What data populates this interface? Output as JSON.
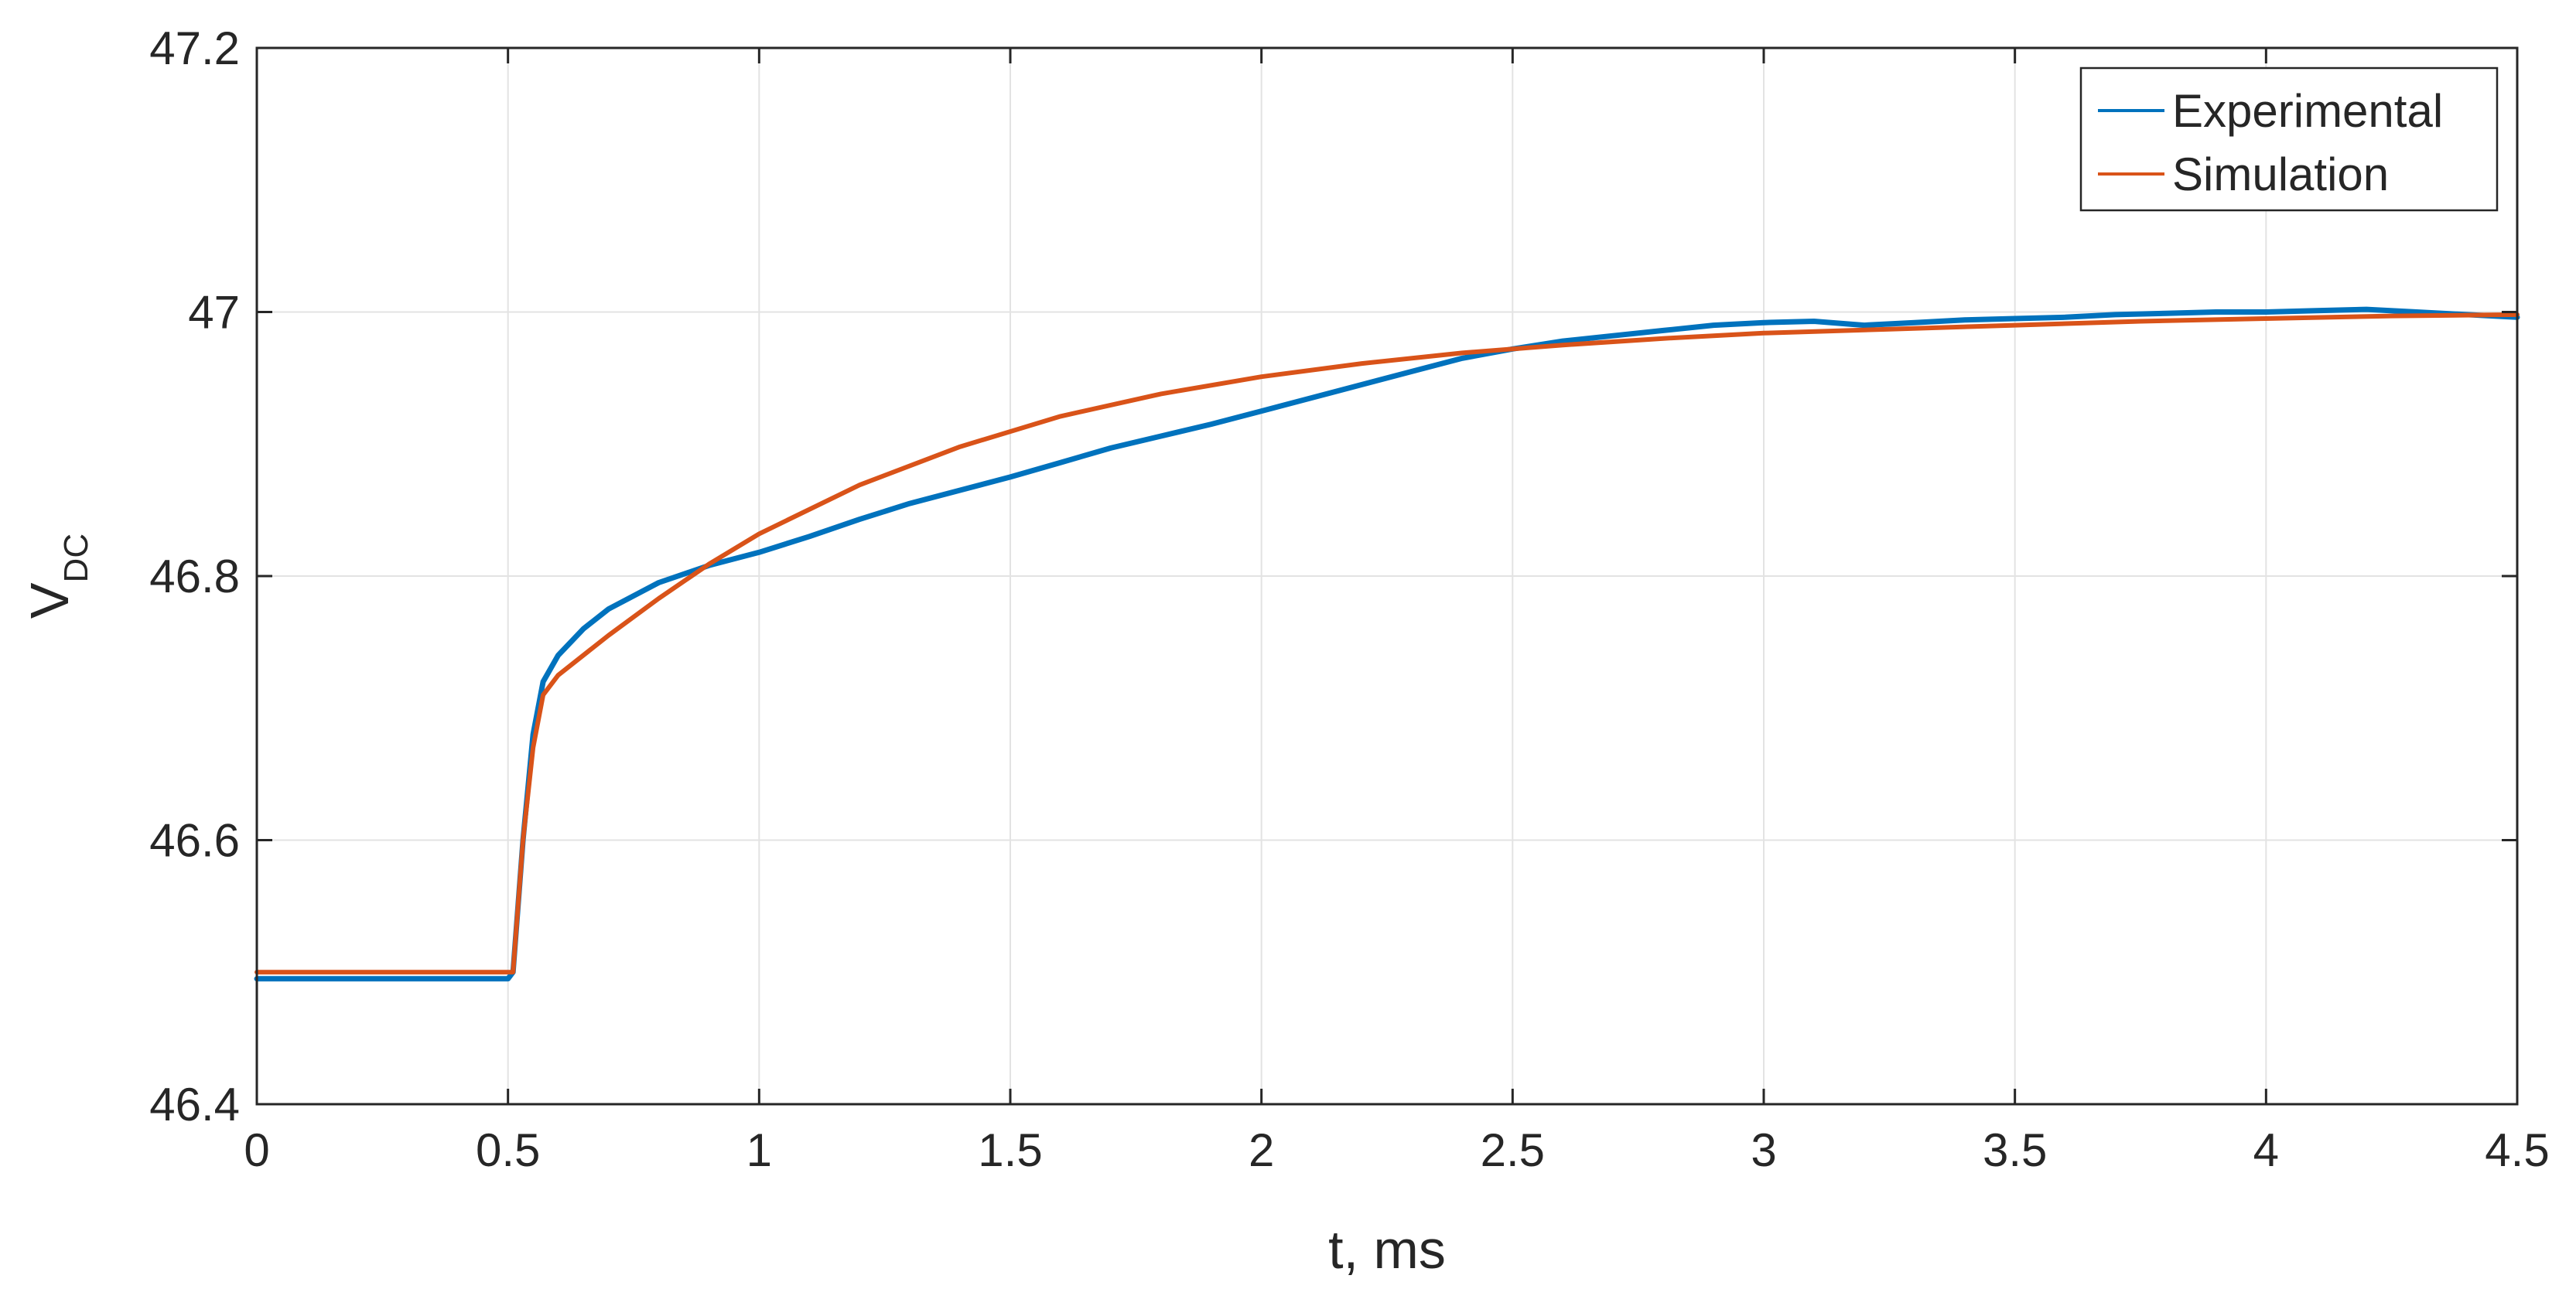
{
  "chart_data": {
    "type": "line",
    "title": "",
    "xlabel": "t, ms",
    "ylabel_main": "V",
    "ylabel_sub": "DC",
    "xlim": [
      0,
      4.5
    ],
    "ylim": [
      46.4,
      47.2
    ],
    "x_ticks": [
      0,
      0.5,
      1,
      1.5,
      2,
      2.5,
      3,
      3.5,
      4,
      4.5
    ],
    "x_tick_labels": [
      "0",
      "0.5",
      "1",
      "1.5",
      "2",
      "2.5",
      "3",
      "3.5",
      "4",
      "4.5"
    ],
    "y_ticks": [
      46.4,
      46.6,
      46.8,
      47,
      47.2
    ],
    "y_tick_labels": [
      "46.4",
      "46.6",
      "46.8",
      "47",
      "47.2"
    ],
    "grid": true,
    "legend_position": "top-right",
    "series": [
      {
        "name": "Experimental",
        "color": "#0072BD",
        "x": [
          0,
          0.5,
          0.51,
          0.53,
          0.55,
          0.57,
          0.6,
          0.65,
          0.7,
          0.8,
          0.9,
          1.0,
          1.1,
          1.2,
          1.3,
          1.4,
          1.5,
          1.6,
          1.7,
          1.8,
          1.9,
          2.0,
          2.1,
          2.2,
          2.3,
          2.4,
          2.5,
          2.6,
          2.7,
          2.8,
          2.9,
          3.0,
          3.1,
          3.2,
          3.3,
          3.4,
          3.5,
          3.6,
          3.7,
          3.8,
          3.9,
          4.0,
          4.1,
          4.2,
          4.3,
          4.4,
          4.5
        ],
        "y": [
          46.495,
          46.495,
          46.5,
          46.6,
          46.68,
          46.72,
          46.74,
          46.76,
          46.775,
          46.795,
          46.808,
          46.818,
          46.83,
          46.843,
          46.855,
          46.865,
          46.875,
          46.886,
          46.897,
          46.906,
          46.915,
          46.925,
          46.935,
          46.945,
          46.955,
          46.965,
          46.972,
          46.978,
          46.982,
          46.986,
          46.99,
          46.992,
          46.993,
          46.99,
          46.992,
          46.994,
          46.995,
          46.996,
          46.998,
          46.999,
          47.0,
          47.0,
          47.001,
          47.002,
          47.0,
          46.998,
          46.996
        ]
      },
      {
        "name": "Simulation",
        "color": "#D95319",
        "x": [
          0,
          0.51,
          0.53,
          0.55,
          0.57,
          0.6,
          0.7,
          0.8,
          0.9,
          1.0,
          1.2,
          1.4,
          1.6,
          1.8,
          2.0,
          2.2,
          2.4,
          2.6,
          2.8,
          3.0,
          3.25,
          3.5,
          3.75,
          4.0,
          4.25,
          4.5
        ],
        "y": [
          46.5,
          46.5,
          46.6,
          46.67,
          46.71,
          46.725,
          46.755,
          46.783,
          46.809,
          46.832,
          46.869,
          46.898,
          46.921,
          46.938,
          46.951,
          46.961,
          46.969,
          46.975,
          46.98,
          46.984,
          46.987,
          46.99,
          46.993,
          46.995,
          46.997,
          46.998
        ]
      }
    ]
  }
}
